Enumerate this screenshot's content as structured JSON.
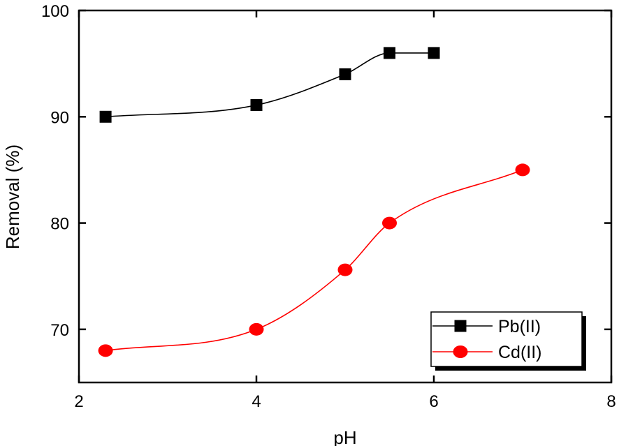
{
  "chart_data": {
    "type": "scatter",
    "title": "",
    "xlabel": "pH",
    "ylabel": "Removal (%)",
    "xlim": [
      2,
      8
    ],
    "ylim": [
      65,
      100
    ],
    "x_ticks": [
      2,
      4,
      6,
      8
    ],
    "y_ticks": [
      70,
      80,
      90,
      100
    ],
    "grid": false,
    "legend_position": "bottom-right",
    "series": [
      {
        "name": "Pb(II)",
        "marker": "square",
        "color": "#000000",
        "smooth_line": true,
        "points": [
          {
            "x": 2.3,
            "y": 90.0
          },
          {
            "x": 4.0,
            "y": 91.1
          },
          {
            "x": 5.0,
            "y": 94.0
          },
          {
            "x": 5.5,
            "y": 96.0
          },
          {
            "x": 6.0,
            "y": 96.0
          }
        ]
      },
      {
        "name": "Cd(II)",
        "marker": "circle",
        "color": "#ff0000",
        "smooth_line": true,
        "points": [
          {
            "x": 2.3,
            "y": 68.0
          },
          {
            "x": 4.0,
            "y": 70.0
          },
          {
            "x": 5.0,
            "y": 75.6
          },
          {
            "x": 5.5,
            "y": 80.0
          },
          {
            "x": 7.0,
            "y": 85.0
          }
        ]
      }
    ]
  }
}
